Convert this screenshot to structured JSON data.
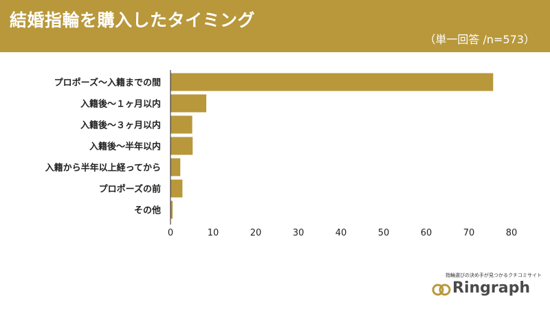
{
  "header": {
    "title": "結婚指輪を購入したタイミング",
    "subtitle": "（単一回答 /n=573）"
  },
  "colors": {
    "bar": "#b8983b",
    "banner": "#b8983b",
    "axis": "#222222"
  },
  "chart_data": {
    "type": "bar",
    "orientation": "horizontal",
    "categories": [
      "プロポーズ〜入籍までの間",
      "入籍後〜１ヶ月以内",
      "入籍後〜３ヶ月以内",
      "入籍後〜半年以内",
      "入籍から半年以上経ってから",
      "プロポーズの前",
      "その他"
    ],
    "values": [
      75.7,
      8.4,
      5.1,
      5.2,
      2.3,
      2.8,
      0.5
    ],
    "xlim": [
      0,
      80
    ],
    "xticks": [
      0,
      10,
      20,
      30,
      40,
      50,
      60,
      70,
      80
    ],
    "grid": false
  },
  "brand": {
    "tagline": "指輪選びの決め手が見つかるクチコミサイト",
    "name": "Ringraph",
    "icon": "double-ring-logo-icon"
  }
}
